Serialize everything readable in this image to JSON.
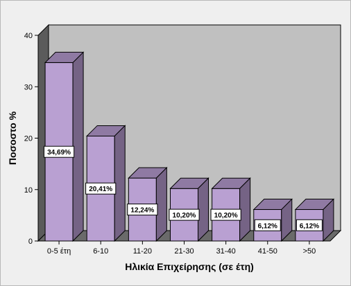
{
  "chart_data": {
    "type": "bar",
    "categories": [
      "0-5 έτη",
      "6-10",
      "11-20",
      "21-30",
      "31-40",
      "41-50",
      ">50"
    ],
    "values": [
      34.69,
      20.41,
      12.24,
      10.2,
      10.2,
      6.12,
      6.12
    ],
    "data_labels": [
      "34,69%",
      "20,41%",
      "12,24%",
      "10,20%",
      "10,20%",
      "6,12%",
      "6,12%"
    ],
    "xlabel": "Ηλικία Επιχείρησης (σε έτη)",
    "ylabel": "Ποσοστο %",
    "ylim": [
      0,
      40
    ],
    "yticks": [
      "0",
      "10",
      "20",
      "30",
      "40"
    ],
    "grid": false,
    "legend": "none",
    "style": "3d",
    "colors": {
      "bar_front": "#b9a0d2",
      "bar_top": "#8f7aa3",
      "bar_side": "#756385",
      "back_wall": "#c0c0c0",
      "side_wall": "#5b5b5b",
      "floor": "#6a6a6a",
      "background": "#efefef"
    }
  }
}
